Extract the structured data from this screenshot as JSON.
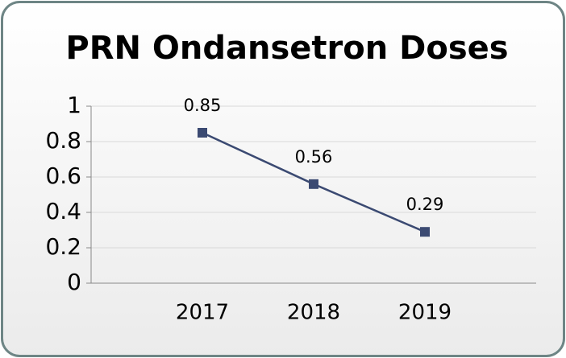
{
  "chart_data": {
    "type": "line",
    "title": "PRN Ondansetron Doses",
    "categories": [
      "2017",
      "2018",
      "2019"
    ],
    "series": [
      {
        "name": "PRN Ondansetron Doses",
        "color": "#3b4a72",
        "values": [
          0.85,
          0.56,
          0.29
        ]
      }
    ],
    "ylim": [
      0,
      1
    ],
    "yticks": [
      0,
      0.2,
      0.4,
      0.6,
      0.8,
      1
    ],
    "grid": true,
    "data_labels": true
  }
}
